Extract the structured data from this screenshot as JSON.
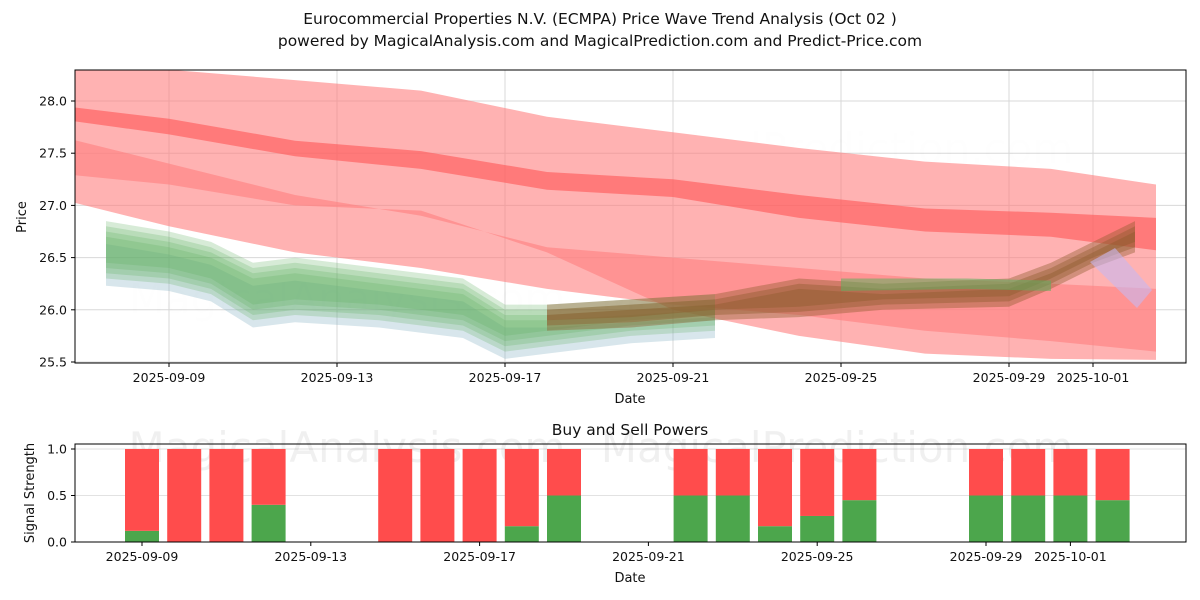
{
  "header": {
    "title": "Eurocommercial Properties N.V. (ECMPA) Price Wave Trend Analysis (Oct 02 )",
    "subtitle": "powered by MagicalAnalysis.com and MagicalPrediction.com and Predict-Price.com"
  },
  "watermarks": [
    "MagicalAnalysis.com",
    "MagicalPrediction.com"
  ],
  "colors": {
    "sell": "#ff4c4c",
    "buy": "#4ca64c",
    "band_red": "#ff7f7f",
    "band_green": "#5fae5f",
    "band_brown": "#8b5a2b"
  },
  "chart_data": [
    {
      "type": "area",
      "title": "",
      "xlabel": "Date",
      "ylabel": "Price",
      "x_ticks": [
        "2025-09-09",
        "2025-09-13",
        "2025-09-17",
        "2025-09-21",
        "2025-09-25",
        "2025-09-29",
        "2025-10-01"
      ],
      "y_ticks": [
        "25.5",
        "26.0",
        "26.5",
        "27.0",
        "27.5",
        "28.0"
      ],
      "ylim": [
        25.48,
        28.3
      ],
      "xlim": [
        "2025-09-06",
        "2025-10-03"
      ],
      "grid": true,
      "series": [
        {
          "name": "upper-red-band",
          "x": [
            "2025-09-06.5",
            "2025-09-09",
            "2025-09-12",
            "2025-09-15",
            "2025-09-18",
            "2025-09-21",
            "2025-09-24",
            "2025-09-27",
            "2025-09-30",
            "2025-10-02.5"
          ],
          "upper": [
            28.35,
            28.3,
            28.2,
            28.1,
            27.85,
            27.7,
            27.55,
            27.42,
            27.35,
            27.2
          ],
          "lower": [
            27.05,
            26.8,
            26.55,
            26.4,
            26.2,
            26.05,
            25.95,
            25.8,
            25.7,
            25.6
          ]
        },
        {
          "name": "mid-red-band",
          "x": [
            "2025-09-06.5",
            "2025-09-09",
            "2025-09-12",
            "2025-09-15",
            "2025-09-18",
            "2025-09-21",
            "2025-09-24",
            "2025-09-27",
            "2025-09-30",
            "2025-10-02.5"
          ],
          "upper": [
            27.95,
            27.83,
            27.62,
            27.52,
            27.32,
            27.25,
            27.1,
            26.97,
            26.93,
            26.88
          ],
          "lower": [
            27.82,
            27.68,
            27.47,
            27.35,
            27.15,
            27.08,
            26.88,
            26.75,
            26.7,
            26.57
          ]
        },
        {
          "name": "lower-red-band",
          "x": [
            "2025-09-06.5",
            "2025-09-09",
            "2025-09-12",
            "2025-09-15",
            "2025-09-18",
            "2025-09-21",
            "2025-09-24",
            "2025-09-27",
            "2025-09-30",
            "2025-10-02.5"
          ],
          "upper": [
            27.65,
            27.4,
            27.1,
            26.9,
            26.6,
            26.5,
            26.4,
            26.3,
            26.25,
            26.2
          ],
          "lower": [
            27.3,
            27.2,
            27.0,
            26.95,
            26.55,
            26.0,
            25.75,
            25.58,
            25.53,
            25.52
          ]
        },
        {
          "name": "green-wave",
          "x": [
            "2025-09-07.5",
            "2025-09-09",
            "2025-09-10",
            "2025-09-11",
            "2025-09-12",
            "2025-09-14",
            "2025-09-16",
            "2025-09-17",
            "2025-09-18",
            "2025-09-20",
            "2025-09-22"
          ],
          "upper": [
            26.75,
            26.65,
            26.55,
            26.35,
            26.4,
            26.3,
            26.2,
            25.95,
            25.95,
            26.0,
            26.05
          ],
          "lower": [
            26.35,
            26.3,
            26.2,
            25.95,
            26.0,
            25.95,
            25.85,
            25.65,
            25.7,
            25.8,
            25.85
          ]
        },
        {
          "name": "brown-forecast",
          "x": [
            "2025-09-18",
            "2025-09-20",
            "2025-09-22",
            "2025-09-24",
            "2025-09-26",
            "2025-09-29",
            "2025-09-30",
            "2025-10-01",
            "2025-10-02"
          ],
          "upper": [
            26.0,
            26.05,
            26.1,
            26.25,
            26.2,
            26.25,
            26.4,
            26.6,
            26.8
          ],
          "lower": [
            25.85,
            25.88,
            25.95,
            25.98,
            26.05,
            26.08,
            26.25,
            26.45,
            26.6
          ]
        },
        {
          "name": "green-tail",
          "x": [
            "2025-09-25",
            "2025-09-28",
            "2025-09-30"
          ],
          "upper": [
            26.3,
            26.3,
            26.28
          ],
          "lower": [
            26.18,
            26.2,
            26.18
          ]
        }
      ]
    },
    {
      "type": "bar",
      "title": "Buy and Sell Powers",
      "xlabel": "Date",
      "ylabel": "Signal Strength",
      "x_ticks": [
        "2025-09-09",
        "2025-09-13",
        "2025-09-17",
        "2025-09-21",
        "2025-09-25",
        "2025-09-29",
        "2025-10-01"
      ],
      "y_ticks": [
        "0.0",
        "0.5",
        "1.0"
      ],
      "ylim": [
        0,
        1.05
      ],
      "categories": [
        "2025-09-09",
        "2025-09-10",
        "2025-09-11",
        "2025-09-12",
        "2025-09-15",
        "2025-09-16",
        "2025-09-17",
        "2025-09-18",
        "2025-09-19",
        "2025-09-22",
        "2025-09-23",
        "2025-09-24",
        "2025-09-25",
        "2025-09-26",
        "2025-09-29",
        "2025-09-30",
        "2025-10-01",
        "2025-10-02"
      ],
      "series": [
        {
          "name": "Buy",
          "values": [
            0.12,
            0.0,
            0.0,
            0.4,
            0.0,
            0.0,
            0.0,
            0.17,
            0.5,
            0.5,
            0.5,
            0.17,
            0.28,
            0.45,
            0.5,
            0.5,
            0.5,
            0.45
          ]
        },
        {
          "name": "Sell",
          "values": [
            0.88,
            1.0,
            1.0,
            0.6,
            1.0,
            1.0,
            1.0,
            0.83,
            0.5,
            0.5,
            0.5,
            0.83,
            0.72,
            0.55,
            0.5,
            0.5,
            0.5,
            0.55
          ]
        }
      ]
    }
  ]
}
